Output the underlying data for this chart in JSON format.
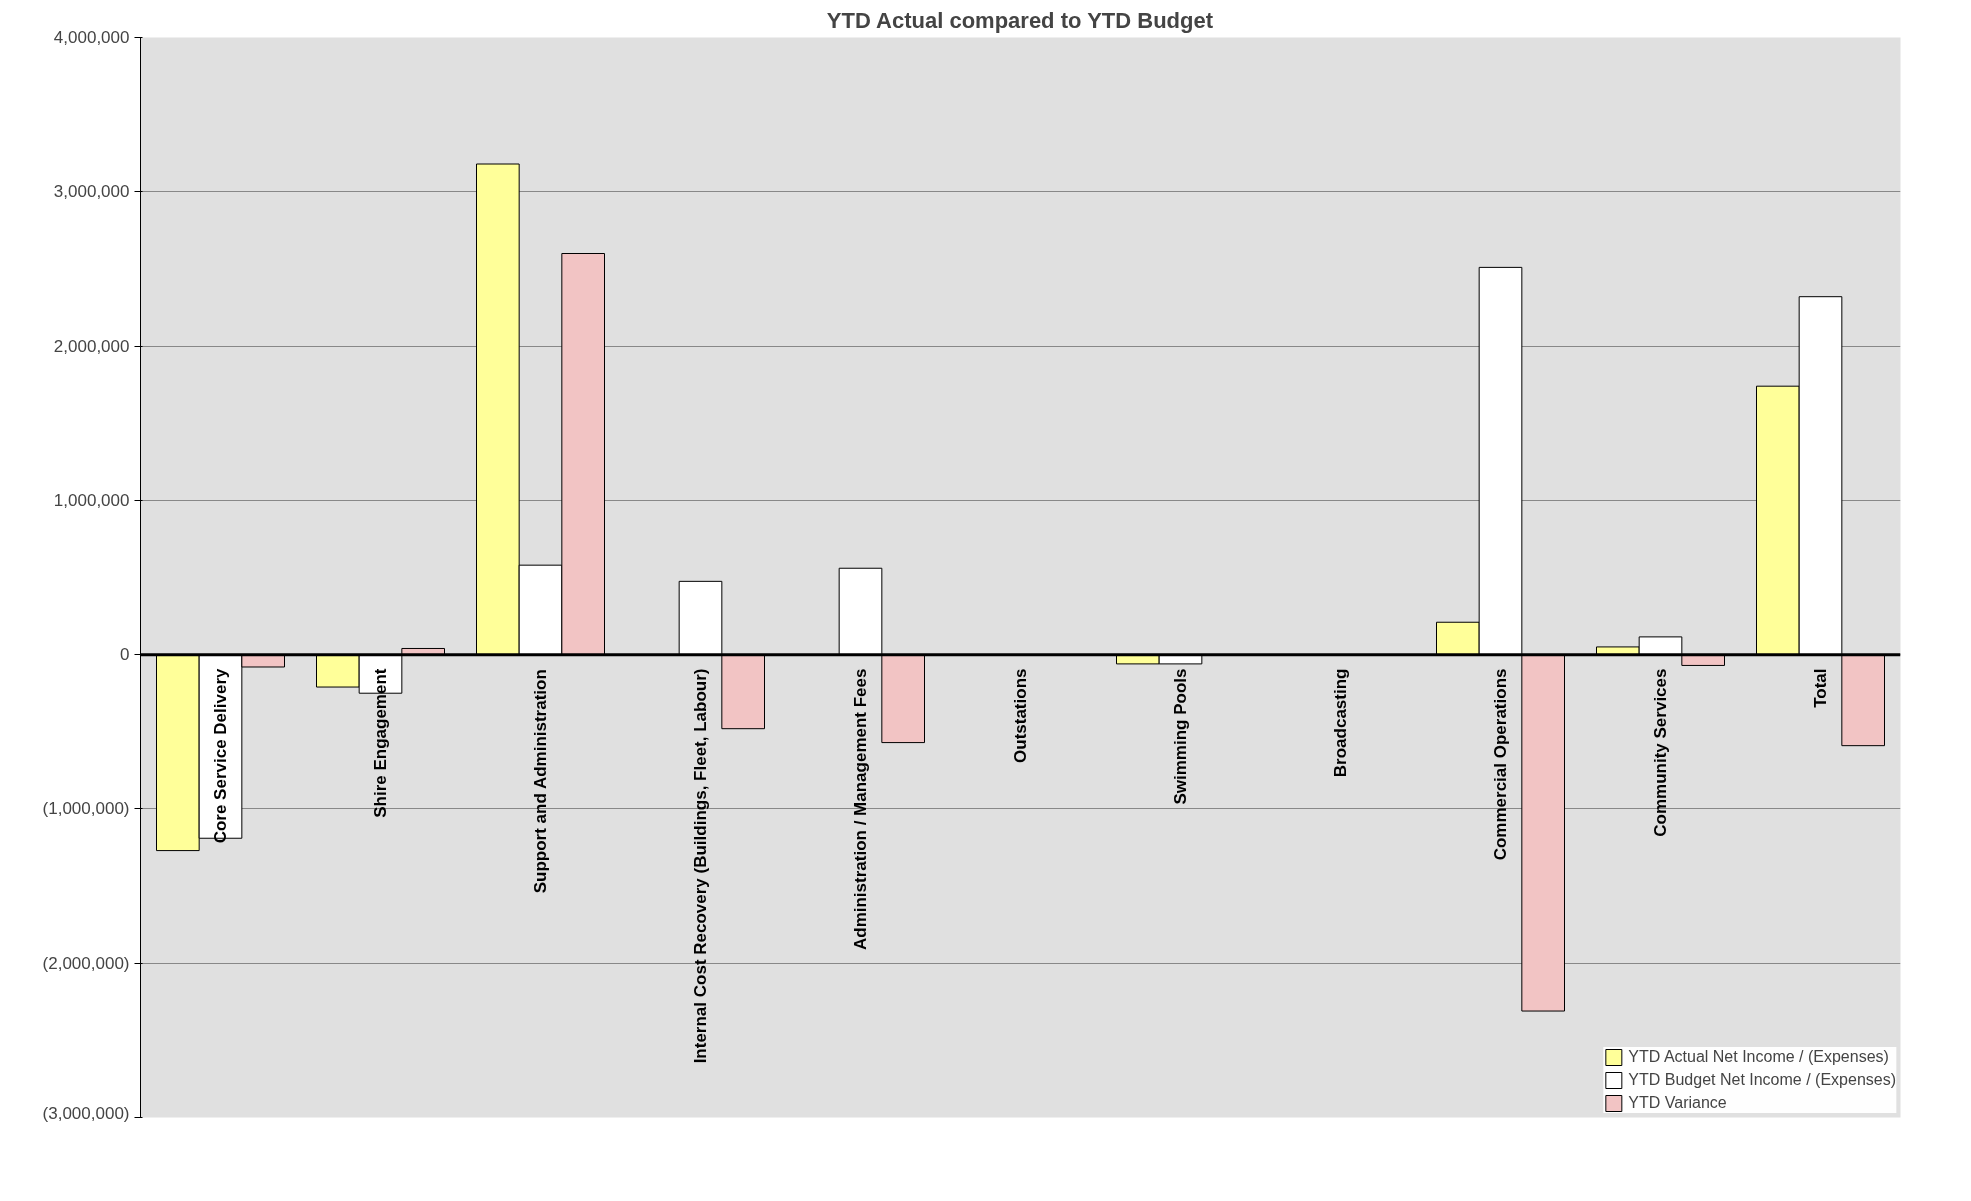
{
  "chart_data": {
    "type": "bar",
    "title": "YTD Actual compared to YTD Budget",
    "categories": [
      "Core Service Delivery",
      "Shire Engagement",
      "Support and Administration",
      "Internal Cost Recovery (Buildings, Fleet, Labour)",
      "Administration / Management Fees",
      "Outstations",
      "Swimming Pools",
      "Broadcasting",
      "Commercial Operations",
      "Community Services",
      "Total"
    ],
    "series": [
      {
        "name": "YTD Actual Net Income / (Expenses)",
        "color": "#ffff99",
        "values": [
          -1270000,
          -210000,
          3180000,
          null,
          null,
          null,
          -60000,
          null,
          210000,
          50000,
          1740000
        ]
      },
      {
        "name": "YTD Budget Net Income / (Expenses)",
        "color": "#ffffff",
        "values": [
          -1190000,
          -250000,
          580000,
          475000,
          560000,
          null,
          -60000,
          null,
          2510000,
          115000,
          2320000
        ]
      },
      {
        "name": "YTD Variance",
        "color": "#f2c4c4",
        "values": [
          -80000,
          40000,
          2600000,
          -480000,
          -570000,
          null,
          null,
          null,
          -2310000,
          -70000,
          -590000
        ]
      }
    ],
    "ylim": [
      -3000000,
      4000000
    ],
    "yticks": [
      {
        "value": -3000000,
        "label": "(3,000,000)"
      },
      {
        "value": -2000000,
        "label": "(2,000,000)"
      },
      {
        "value": -1000000,
        "label": "(1,000,000)"
      },
      0,
      {
        "value": 1000000,
        "label": "1,000,000"
      },
      {
        "value": 2000000,
        "label": "2,000,000"
      },
      {
        "value": 3000000,
        "label": "3,000,000"
      },
      {
        "value": 4000000,
        "label": "4,000,000"
      }
    ],
    "grid": "y",
    "legend": "bottom right"
  }
}
